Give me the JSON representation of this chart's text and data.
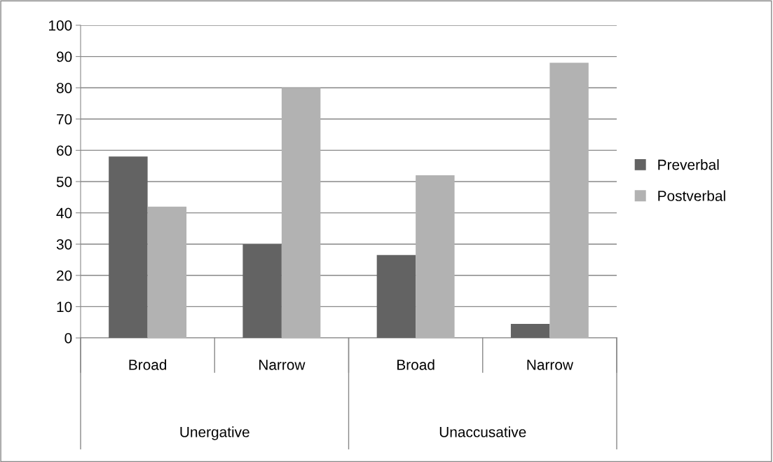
{
  "chart_data": {
    "type": "bar",
    "categories": [
      "Broad",
      "Narrow",
      "Broad",
      "Narrow"
    ],
    "series": [
      {
        "name": "Preverbal",
        "color": "#636363",
        "values": [
          58,
          30,
          26.5,
          4.5
        ]
      },
      {
        "name": "Postverbal",
        "color": "#b2b2b2",
        "values": [
          42,
          80,
          52,
          88
        ]
      }
    ],
    "annotations": [
      "Unergative",
      "Unaccusative"
    ],
    "ylim": [
      0,
      100
    ],
    "yticks": [
      0,
      10,
      20,
      30,
      40,
      50,
      60,
      70,
      80,
      90,
      100
    ],
    "grid": "y",
    "legend": "right"
  }
}
